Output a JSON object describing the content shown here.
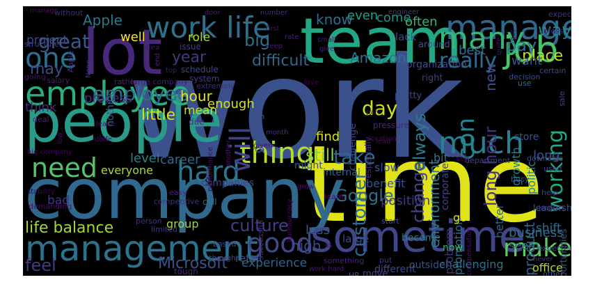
{
  "cloud": {
    "background": "#000000",
    "words": [
      {
        "text": "work",
        "color": "#3b518b"
      },
      {
        "text": "time",
        "color": "#dfe318"
      },
      {
        "text": "company",
        "color": "#31688e"
      },
      {
        "text": "people",
        "color": "#2a9a8a"
      },
      {
        "text": "team",
        "color": "#22a785"
      },
      {
        "text": "lot",
        "color": "#482878"
      },
      {
        "text": "sometime",
        "color": "#3f4788"
      },
      {
        "text": "management",
        "color": "#2c728e"
      },
      {
        "text": "employee",
        "color": "#29af7f"
      },
      {
        "text": "manager",
        "color": "#31688e"
      },
      {
        "text": "work life",
        "color": "#2d708e"
      },
      {
        "text": "one",
        "color": "#2d708e"
      },
      {
        "text": "job",
        "color": "#4ac16d"
      },
      {
        "text": "many",
        "color": "#35b779"
      },
      {
        "text": "much",
        "color": "#26828e"
      },
      {
        "text": "hard",
        "color": "#2a788e"
      },
      {
        "text": "thing",
        "color": "#b5de2b"
      },
      {
        "text": "need",
        "color": "#52c569"
      },
      {
        "text": "will",
        "color": "#414487"
      },
      {
        "text": "good",
        "color": "#3e4a89"
      },
      {
        "text": "make",
        "color": "#5ec962"
      },
      {
        "text": "culture",
        "color": "#433e85"
      },
      {
        "text": "life balance",
        "color": "#9fda3a"
      },
      {
        "text": "Microsoft",
        "color": "#3b528b"
      },
      {
        "text": "feel",
        "color": "#443983"
      },
      {
        "text": "Google",
        "color": "#2e6f8e"
      },
      {
        "text": "customer",
        "color": "#306a8e"
      },
      {
        "text": "really",
        "color": "#2e6e8e"
      },
      {
        "text": "con",
        "color": "#25858e"
      },
      {
        "text": "working",
        "color": "#22a884"
      },
      {
        "text": "difficult",
        "color": "#31688e"
      },
      {
        "text": "Amazon",
        "color": "#2b748e"
      },
      {
        "text": "great",
        "color": "#38598c"
      },
      {
        "text": "may",
        "color": "#3d4d8a"
      },
      {
        "text": "employee",
        "color": "#2d708e"
      },
      {
        "text": "still",
        "color": "#7ad151"
      },
      {
        "text": "take",
        "color": "#2e6d8e"
      },
      {
        "text": "day",
        "color": "#c8e020"
      },
      {
        "text": "little",
        "color": "#d2e21b"
      },
      {
        "text": "hour",
        "color": "#e5e419"
      },
      {
        "text": "year",
        "color": "#443a83"
      },
      {
        "text": "project",
        "color": "#3f4889"
      },
      {
        "text": "Apple",
        "color": "#2a788e"
      },
      {
        "text": "big",
        "color": "#2c728e"
      },
      {
        "text": "well",
        "color": "#fde725"
      },
      {
        "text": "role",
        "color": "#addc30"
      },
      {
        "text": "pay",
        "color": "#2c738e"
      },
      {
        "text": "way",
        "color": "#24868e"
      },
      {
        "text": "place",
        "color": "#bddf26"
      },
      {
        "text": "want",
        "color": "#3b528b"
      },
      {
        "text": "know",
        "color": "#2d708e"
      },
      {
        "text": "even",
        "color": "#1f9e89"
      },
      {
        "text": "come",
        "color": "#21918c"
      },
      {
        "text": "often",
        "color": "#31b57b"
      },
      {
        "text": "best",
        "color": "#2d708e"
      },
      {
        "text": "long hour",
        "color": "#46327e"
      },
      {
        "text": "new",
        "color": "#3d4e8a"
      },
      {
        "text": "always",
        "color": "#287d8e"
      },
      {
        "text": "change",
        "color": "#3f4788"
      },
      {
        "text": "environment",
        "color": "#2a788e"
      },
      {
        "text": "benefit",
        "color": "#3b528b"
      },
      {
        "text": "position",
        "color": "#453882"
      },
      {
        "text": "promotion",
        "color": "#2f6c8e"
      },
      {
        "text": "slow",
        "color": "#3a548c"
      },
      {
        "text": "find",
        "color": "#dce319"
      },
      {
        "text": "enough",
        "color": "#d8e219"
      },
      {
        "text": "mean",
        "color": "#c2df23"
      },
      {
        "text": "process",
        "color": "#46307e"
      },
      {
        "text": "think",
        "color": "#472c7a"
      },
      {
        "text": "career",
        "color": "#2f6c8e"
      },
      {
        "text": "level",
        "color": "#26818e"
      },
      {
        "text": "everyone",
        "color": "#a8db34"
      },
      {
        "text": "bad",
        "color": "#453581"
      },
      {
        "text": "group",
        "color": "#9bd93c"
      },
      {
        "text": "retail",
        "color": "#3a548c"
      },
      {
        "text": "high",
        "color": "#3e4989"
      },
      {
        "text": "less",
        "color": "#3b528b"
      },
      {
        "text": "experience",
        "color": "#32648e"
      },
      {
        "text": "say",
        "color": "#c0df25"
      },
      {
        "text": "product",
        "color": "#33628d"
      },
      {
        "text": "business",
        "color": "#2e6e8e"
      },
      {
        "text": "seem",
        "color": "#2d708e"
      },
      {
        "text": "office",
        "color": "#b0dd2f"
      },
      {
        "text": "growth",
        "color": "#26828e"
      },
      {
        "text": "politic",
        "color": "#25838e"
      },
      {
        "text": "long",
        "color": "#3b528b"
      },
      {
        "text": "better",
        "color": "#34618d"
      },
      {
        "text": "go",
        "color": "#dde318"
      },
      {
        "text": "now",
        "color": "#37b878"
      },
      {
        "text": "bit",
        "color": "#2a788e"
      },
      {
        "text": "large",
        "color": "#3f4788"
      },
      {
        "text": "become",
        "color": "#287c8e"
      },
      {
        "text": "different",
        "color": "#3e4989"
      },
      {
        "text": "outside",
        "color": "#3a548c"
      },
      {
        "text": "challenging",
        "color": "#2c728e"
      },
      {
        "text": "shift",
        "color": "#2e6d8e"
      },
      {
        "text": "problem",
        "color": "#46307e"
      },
      {
        "text": "corporate",
        "color": "#3f4788"
      },
      {
        "text": "opportunities",
        "color": "#3b528b"
      },
      {
        "text": "leadership",
        "color": "#3a548c"
      },
      {
        "text": "nothing",
        "color": "#33638d"
      },
      {
        "text": "getting",
        "color": "#3b528b"
      },
      {
        "text": "organization",
        "color": "#3e4a89"
      },
      {
        "text": "around",
        "color": "#3b518b"
      },
      {
        "text": "lack",
        "color": "#3e4c8a"
      },
      {
        "text": "right",
        "color": "#423f85"
      },
      {
        "text": "structure",
        "color": "#433e85"
      },
      {
        "text": "issue",
        "color": "#433d84"
      },
      {
        "text": "schedule",
        "color": "#3e4989"
      },
      {
        "text": "system",
        "color": "#453882"
      },
      {
        "text": "rather",
        "color": "#482173"
      },
      {
        "text": "large company",
        "color": "#481f70"
      },
      {
        "text": "salary",
        "color": "#481b6d"
      },
      {
        "text": "going",
        "color": "#481769"
      },
      {
        "text": "extremely",
        "color": "#472a7a"
      },
      {
        "text": "challenge",
        "color": "#3f4788"
      },
      {
        "text": "pretty",
        "color": "#3e4a89"
      },
      {
        "text": "pressure",
        "color": "#482475"
      },
      {
        "text": "especially",
        "color": "#472d7b"
      },
      {
        "text": "decision",
        "color": "#3b528b"
      },
      {
        "text": "use",
        "color": "#2d708e"
      },
      {
        "text": "certain",
        "color": "#3e4a89"
      },
      {
        "text": "sale",
        "color": "#3f4788"
      },
      {
        "text": "Apple",
        "color": "#46337f"
      },
      {
        "text": "deal",
        "color": "#482475"
      },
      {
        "text": "leave",
        "color": "#471365"
      },
      {
        "text": "done",
        "color": "#470e61"
      },
      {
        "text": "due",
        "color": "#46327e"
      },
      {
        "text": "store",
        "color": "#3b528b"
      },
      {
        "text": "downside",
        "color": "#3e4989"
      },
      {
        "text": "focus",
        "color": "#3f4788"
      },
      {
        "text": "department",
        "color": "#414487"
      },
      {
        "text": "internal",
        "color": "#33638d"
      },
      {
        "text": "might",
        "color": "#3a548c"
      },
      {
        "text": "companies",
        "color": "#3f4788"
      },
      {
        "text": "busy",
        "color": "#3b528b"
      },
      {
        "text": "used",
        "color": "#414487"
      },
      {
        "text": "help",
        "color": "#433e85"
      },
      {
        "text": "impact",
        "color": "#482878"
      },
      {
        "text": "expected",
        "color": "#3e4989"
      },
      {
        "text": "never",
        "color": "#46327e"
      },
      {
        "text": "call",
        "color": "#2e6e8e"
      },
      {
        "text": "competitive",
        "color": "#472f7d"
      },
      {
        "text": "easy",
        "color": "#482475"
      },
      {
        "text": "demanding",
        "color": "#471063"
      },
      {
        "text": "person",
        "color": "#472c7a"
      },
      {
        "text": "limited",
        "color": "#453581"
      },
      {
        "text": "based",
        "color": "#3e4989"
      },
      {
        "text": "though",
        "color": "#433e85"
      },
      {
        "text": "learn",
        "color": "#471365"
      },
      {
        "text": "bureaucracy",
        "color": "#46085c"
      },
      {
        "text": "successful",
        "color": "#46327e"
      },
      {
        "text": "something",
        "color": "#482677"
      },
      {
        "text": "HR",
        "color": "#3b528b"
      },
      {
        "text": "move",
        "color": "#3e4a89"
      },
      {
        "text": "put",
        "color": "#46307e"
      },
      {
        "text": "other",
        "color": "#3a548c"
      },
      {
        "text": "start",
        "color": "#3b528b"
      },
      {
        "text": "tough",
        "color": "#482878"
      },
      {
        "text": "work hard",
        "color": "#481a6c"
      },
      {
        "text": "compensation",
        "color": "#481467"
      },
      {
        "text": "keep",
        "color": "#481c6e"
      },
      {
        "text": "first",
        "color": "#471365"
      },
      {
        "text": "small",
        "color": "#481769"
      },
      {
        "text": "rate",
        "color": "#482071"
      },
      {
        "text": "unless",
        "color": "#482475"
      },
      {
        "text": "expect",
        "color": "#46337f"
      },
      {
        "text": "number",
        "color": "#472e7c"
      },
      {
        "text": "engineer",
        "color": "#453882"
      },
      {
        "text": "without",
        "color": "#472a7a"
      },
      {
        "text": "door",
        "color": "#481f70"
      },
      {
        "text": "manage",
        "color": "#471063"
      },
      {
        "text": "area",
        "color": "#481b6d"
      },
      {
        "text": "top",
        "color": "#481a6c"
      },
      {
        "text": "end",
        "color": "#482374"
      },
      {
        "text": "None",
        "color": "#453581"
      },
      {
        "text": "quite",
        "color": "#481467"
      },
      {
        "text": "get",
        "color": "#46075a"
      },
      {
        "text": "love",
        "color": "#440154"
      },
      {
        "text": "part",
        "color": "#46085c"
      },
      {
        "text": "month",
        "color": "#46307e"
      },
      {
        "text": "given",
        "color": "#471063"
      },
      {
        "text": "another",
        "color": "#481668"
      },
      {
        "text": "performance",
        "color": "#460a5d"
      },
      {
        "text": "far",
        "color": "#440154"
      },
      {
        "text": "low",
        "color": "#470e61"
      },
      {
        "text": "big company",
        "color": "#450559"
      },
      {
        "text": "stability",
        "color": "#440256"
      },
      {
        "text": "grow",
        "color": "#471164"
      },
      {
        "text": "location",
        "color": "#460b5e"
      },
      {
        "text": "lead",
        "color": "#450457"
      },
      {
        "text": "see",
        "color": "#46085c"
      },
      {
        "text": "us",
        "color": "#460a5d"
      },
      {
        "text": "travel",
        "color": "#481c6e"
      },
      {
        "text": "give",
        "color": "#482071"
      }
    ]
  }
}
